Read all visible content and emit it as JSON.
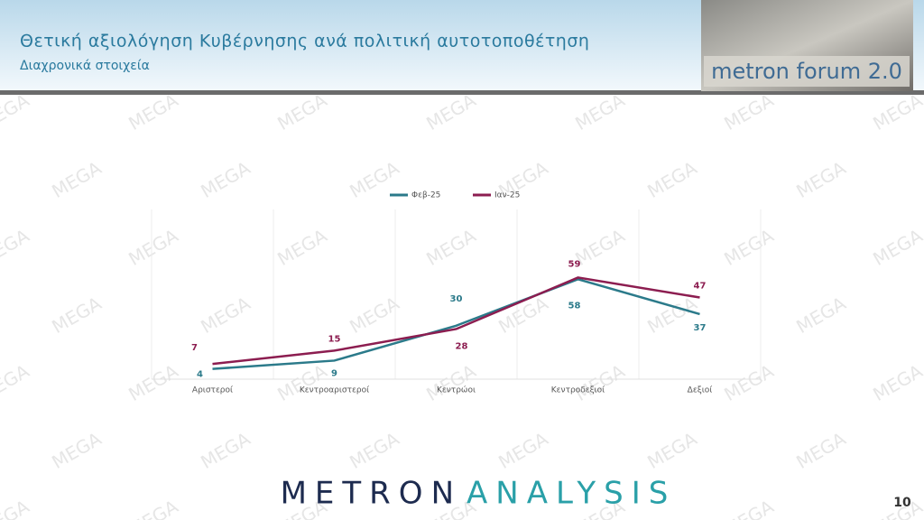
{
  "header": {
    "title": "Θετική αξιολόγηση Κυβέρνησης ανά πολιτική αυτοτοποθέτηση",
    "subtitle": "Διαχρονικά στοιχεία",
    "logo_text": "metron forum 2.0"
  },
  "watermark": "MEGA",
  "chart_data": {
    "type": "line",
    "categories": [
      "Αριστεροί",
      "Κεντροαριστεροί",
      "Κεντρώοι",
      "Κεντροδεξιοί",
      "Δεξιοί"
    ],
    "series": [
      {
        "name": "Φεβ-25",
        "color": "#2b7a8a",
        "values": [
          4,
          9,
          30,
          58,
          37
        ]
      },
      {
        "name": "Ιαν-25",
        "color": "#8c1d50",
        "values": [
          7,
          15,
          28,
          59,
          47
        ]
      }
    ],
    "ylim": [
      0,
      100
    ],
    "legend": "top",
    "data_labels": true
  },
  "footer": {
    "brand_left": "METRON",
    "brand_right": "ANALYSIS",
    "page_number": "10"
  }
}
